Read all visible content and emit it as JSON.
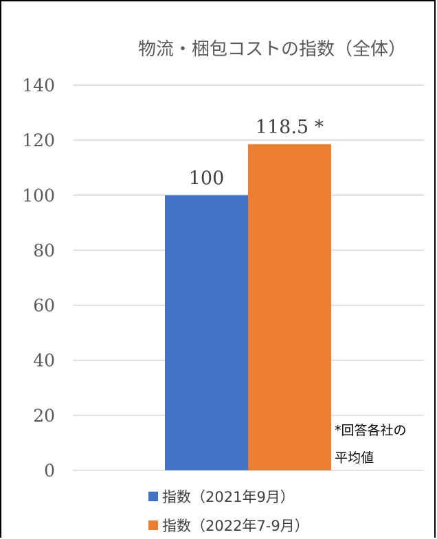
{
  "chart_data": {
    "type": "bar",
    "title": "物流・梱包コストの指数（全体）",
    "categories": [
      ""
    ],
    "series": [
      {
        "name": "指数（2021年9月）",
        "values": [
          100
        ],
        "label": "100",
        "color": "#4472C4"
      },
      {
        "name": "指数（2022年7-9月）",
        "values": [
          118.5
        ],
        "label": "118.5 *",
        "color": "#ED7D31"
      }
    ],
    "ylim": [
      0,
      140
    ],
    "yticks": [
      "0",
      "20",
      "40",
      "60",
      "80",
      "100",
      "120",
      "140"
    ],
    "ytick_values": [
      0,
      20,
      40,
      60,
      80,
      100,
      120,
      140
    ],
    "grid": true,
    "legend_position": "bottom",
    "annotation_line1": "*回答各社の",
    "annotation_line2": "平均値"
  }
}
